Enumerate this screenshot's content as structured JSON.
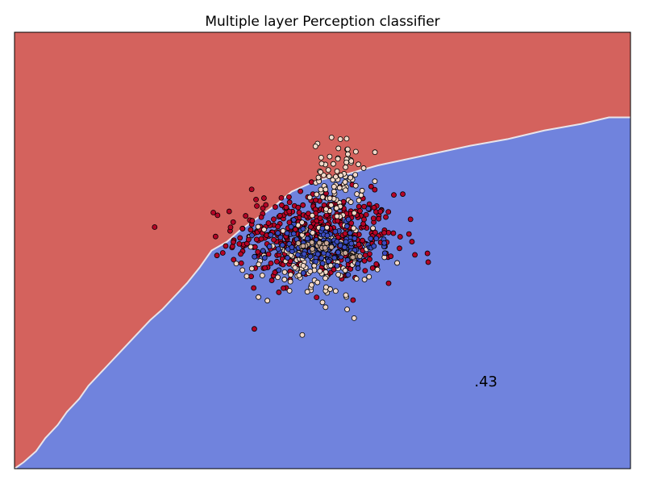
{
  "chart_data": {
    "type": "scatter",
    "title": "Multiple layer Perception classifier",
    "score_text": ".43",
    "xlabel": "",
    "ylabel": "",
    "xticks": [],
    "yticks": [],
    "grid": false,
    "legend": "none",
    "colors": {
      "region_class_0": "#d4625d",
      "region_class_1": "#7083dd",
      "point_red": "#b40426",
      "point_cream": "#f2d8c8",
      "point_blue": "#3b4cc0",
      "point_tan": "#c8a898",
      "edge": "#000000"
    },
    "decision_boundary": [
      [
        -1.0,
        -1.0
      ],
      [
        -0.97,
        -0.97
      ],
      [
        -0.93,
        -0.92
      ],
      [
        -0.9,
        -0.86
      ],
      [
        -0.86,
        -0.8
      ],
      [
        -0.83,
        -0.74
      ],
      [
        -0.79,
        -0.68
      ],
      [
        -0.76,
        -0.62
      ],
      [
        -0.72,
        -0.56
      ],
      [
        -0.68,
        -0.5
      ],
      [
        -0.64,
        -0.44
      ],
      [
        -0.6,
        -0.38
      ],
      [
        -0.56,
        -0.32
      ],
      [
        -0.52,
        -0.27
      ],
      [
        -0.48,
        -0.21
      ],
      [
        -0.44,
        -0.15
      ],
      [
        -0.4,
        -0.08
      ],
      [
        -0.36,
        0.0
      ],
      [
        -0.31,
        0.04
      ],
      [
        -0.27,
        0.09
      ],
      [
        -0.22,
        0.14
      ],
      [
        -0.15,
        0.21
      ],
      [
        -0.1,
        0.27
      ],
      [
        -0.02,
        0.32
      ],
      [
        0.08,
        0.35
      ],
      [
        0.18,
        0.39
      ],
      [
        0.28,
        0.42
      ],
      [
        0.38,
        0.45
      ],
      [
        0.48,
        0.48
      ],
      [
        0.6,
        0.51
      ],
      [
        0.72,
        0.55
      ],
      [
        0.84,
        0.58
      ],
      [
        0.93,
        0.61
      ],
      [
        1.0,
        0.61
      ]
    ],
    "clusters": [
      {
        "class": "red",
        "cx": -0.02,
        "cy": 0.06,
        "sx": 0.13,
        "sy": 0.1,
        "n": 520
      },
      {
        "class": "cream",
        "cx": 0.05,
        "cy": 0.33,
        "sx": 0.04,
        "sy": 0.09,
        "n": 90
      },
      {
        "class": "cream",
        "cx": -0.02,
        "cy": -0.04,
        "sx": 0.09,
        "sy": 0.09,
        "n": 160
      },
      {
        "class": "blue",
        "cx": 0.0,
        "cy": 0.02,
        "sx": 0.09,
        "sy": 0.05,
        "n": 140
      },
      {
        "class": "tan",
        "cx": -0.01,
        "cy": 0.02,
        "sx": 0.03,
        "sy": 0.01,
        "n": 25
      },
      {
        "class": "tan",
        "cx": 0.1,
        "cy": -0.02,
        "sx": 0.02,
        "sy": 0.01,
        "n": 12
      }
    ],
    "outliers": [
      {
        "class": "red",
        "x": -0.23,
        "y": 0.28
      },
      {
        "class": "red",
        "x": -0.19,
        "y": 0.24
      },
      {
        "class": "red",
        "x": -0.29,
        "y": 0.13
      },
      {
        "class": "red",
        "x": -0.26,
        "y": 0.1
      },
      {
        "class": "red",
        "x": -0.24,
        "y": 0.05
      },
      {
        "class": "red",
        "x": -0.27,
        "y": 0.03
      },
      {
        "class": "red",
        "x": 0.3,
        "y": -0.02
      },
      {
        "class": "red",
        "x": 0.25,
        "y": 0.01
      },
      {
        "class": "cream",
        "x": -0.28,
        "y": -0.06
      },
      {
        "class": "cream",
        "x": -0.26,
        "y": -0.09
      },
      {
        "class": "cream",
        "x": 0.01,
        "y": -0.26
      },
      {
        "class": "cream",
        "x": 0.08,
        "y": -0.27
      },
      {
        "class": "cream",
        "x": 0.05,
        "y": 0.42
      }
    ],
    "xlim": [
      -1,
      1
    ],
    "ylim": [
      -1,
      1
    ]
  }
}
